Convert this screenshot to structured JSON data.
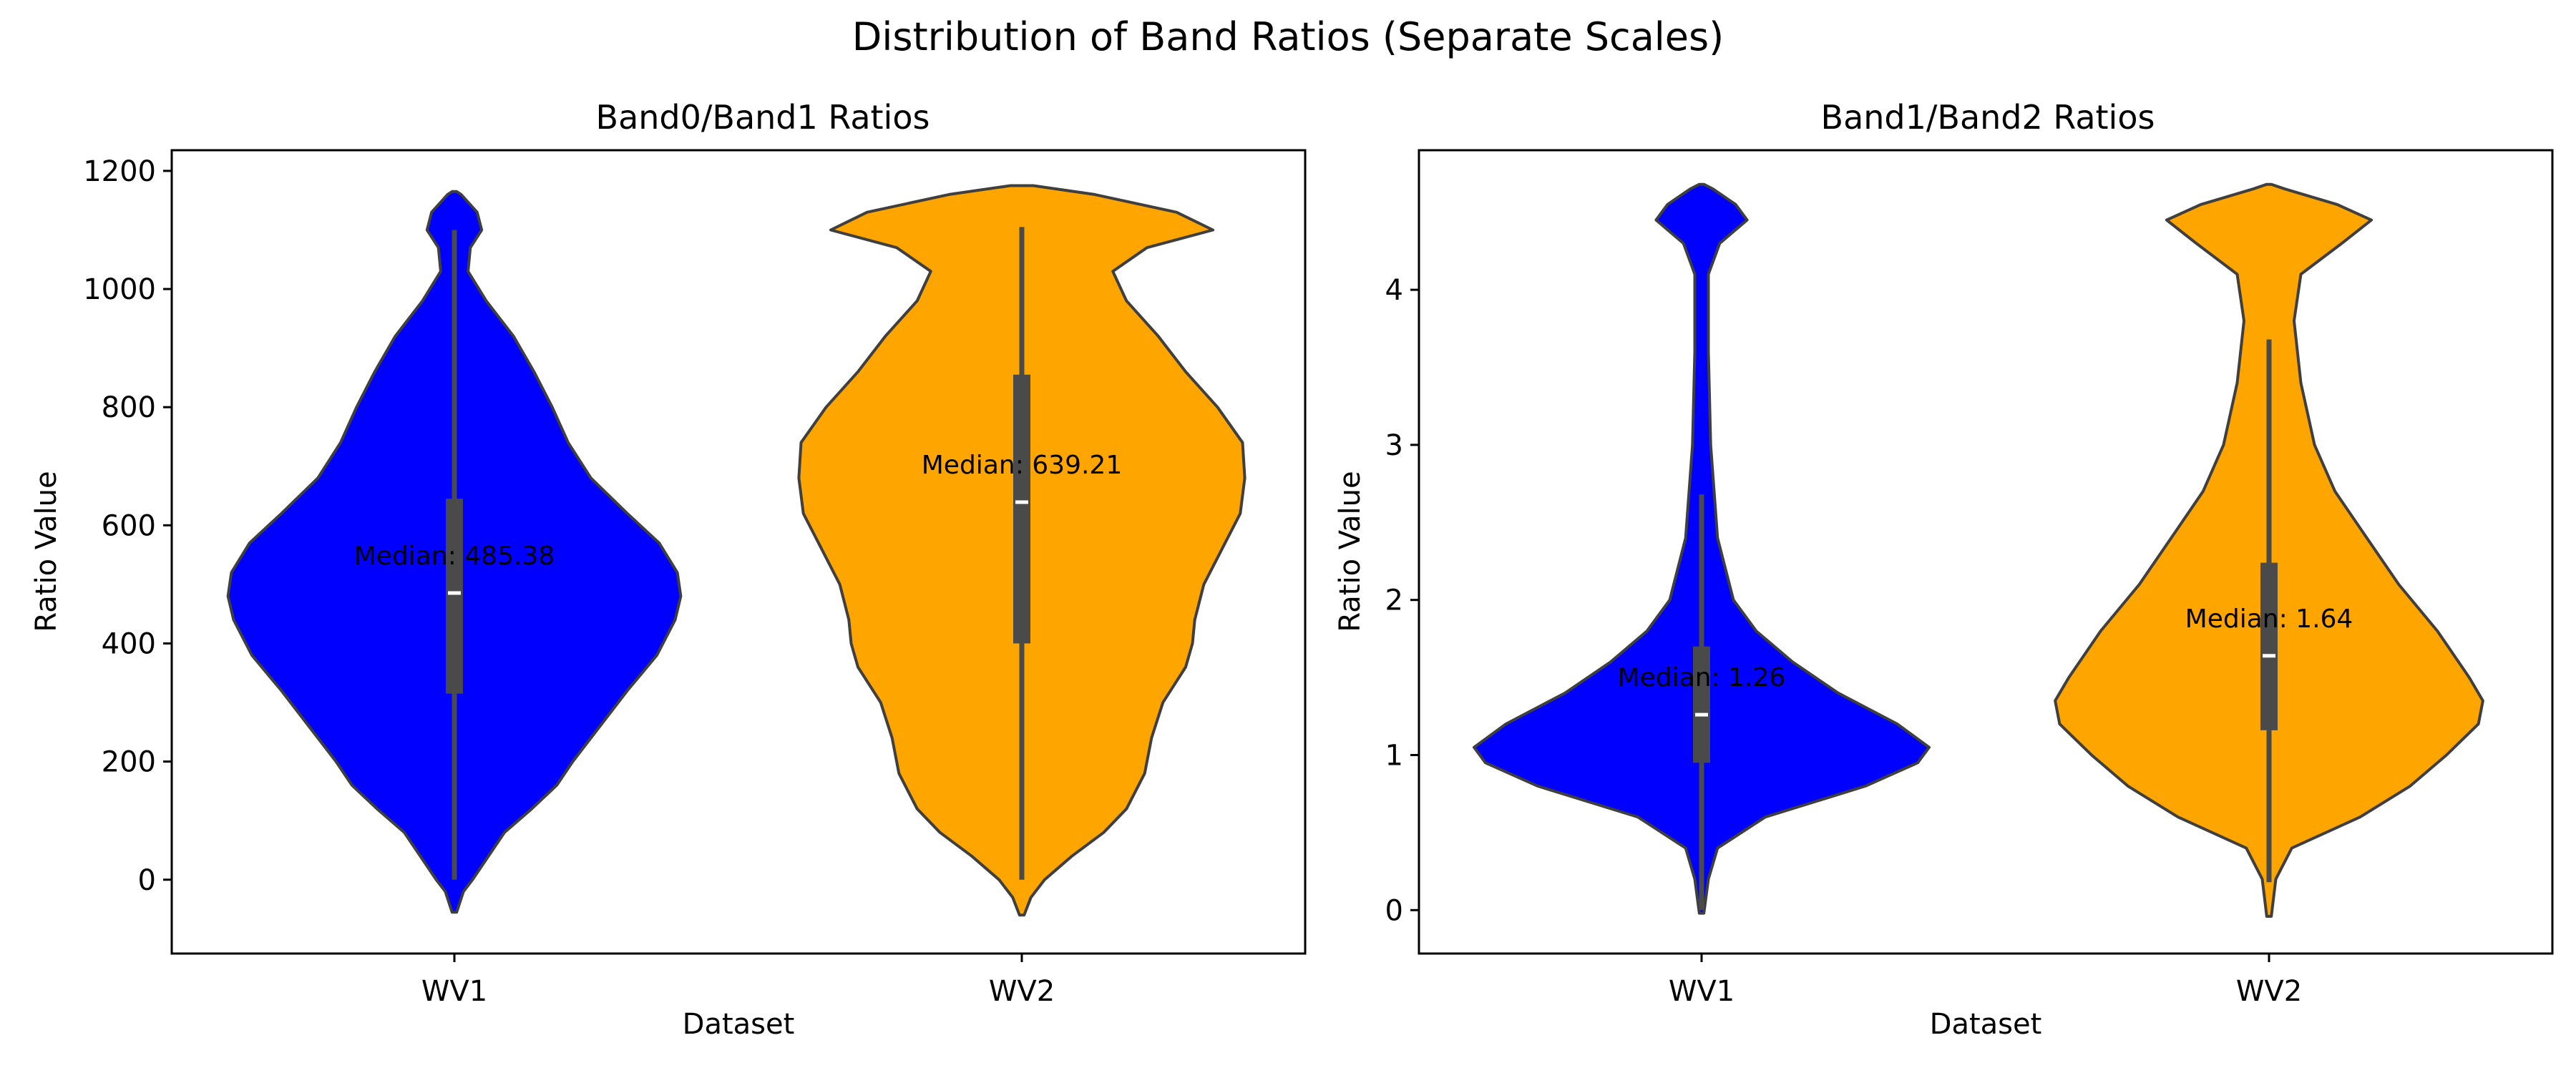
{
  "figure": {
    "title": "Distribution of Band Ratios (Separate Scales)"
  },
  "colors": {
    "WV1": "#0000ff",
    "WV2": "#ffa500",
    "outline": "#3f3f3f",
    "box": "#4a4a4a",
    "median": "#ffffff"
  },
  "chart_data": [
    {
      "type": "violin",
      "title": "Band0/Band1 Ratios",
      "xlabel": "Dataset",
      "ylabel": "Ratio Value",
      "categories": [
        "WV1",
        "WV2"
      ],
      "ylim": [
        -125,
        1235
      ],
      "yticks": [
        0,
        200,
        400,
        600,
        800,
        1000,
        1200
      ],
      "grid": false,
      "series": [
        {
          "name": "WV1",
          "min": 0,
          "q1": 315,
          "median": 485.38,
          "q3": 645,
          "max": 1100,
          "violin_range": [
            -55,
            1165
          ],
          "density": [
            [
              -55,
              0.01
            ],
            [
              -20,
              0.04
            ],
            [
              0,
              0.08
            ],
            [
              40,
              0.15
            ],
            [
              80,
              0.22
            ],
            [
              120,
              0.34
            ],
            [
              160,
              0.45
            ],
            [
              200,
              0.52
            ],
            [
              260,
              0.64
            ],
            [
              320,
              0.76
            ],
            [
              380,
              0.89
            ],
            [
              440,
              0.97
            ],
            [
              480,
              0.995
            ],
            [
              520,
              0.98
            ],
            [
              570,
              0.9
            ],
            [
              620,
              0.76
            ],
            [
              680,
              0.6
            ],
            [
              740,
              0.5
            ],
            [
              800,
              0.43
            ],
            [
              860,
              0.35
            ],
            [
              920,
              0.26
            ],
            [
              980,
              0.14
            ],
            [
              1030,
              0.06
            ],
            [
              1070,
              0.07
            ],
            [
              1100,
              0.12
            ],
            [
              1130,
              0.1
            ],
            [
              1160,
              0.03
            ],
            [
              1165,
              0.01
            ]
          ],
          "median_label": "Median: 485.38"
        },
        {
          "name": "WV2",
          "min": 0,
          "q1": 400,
          "median": 639.21,
          "q3": 855,
          "max": 1105,
          "violin_range": [
            -60,
            1175
          ],
          "density": [
            [
              -60,
              0.01
            ],
            [
              -30,
              0.04
            ],
            [
              0,
              0.1
            ],
            [
              40,
              0.22
            ],
            [
              80,
              0.36
            ],
            [
              120,
              0.46
            ],
            [
              180,
              0.54
            ],
            [
              240,
              0.57
            ],
            [
              300,
              0.62
            ],
            [
              360,
              0.72
            ],
            [
              400,
              0.75
            ],
            [
              440,
              0.76
            ],
            [
              500,
              0.8
            ],
            [
              560,
              0.88
            ],
            [
              620,
              0.96
            ],
            [
              680,
              0.98
            ],
            [
              740,
              0.97
            ],
            [
              800,
              0.86
            ],
            [
              860,
              0.72
            ],
            [
              920,
              0.6
            ],
            [
              980,
              0.46
            ],
            [
              1030,
              0.4
            ],
            [
              1070,
              0.55
            ],
            [
              1100,
              0.84
            ],
            [
              1130,
              0.68
            ],
            [
              1160,
              0.32
            ],
            [
              1175,
              0.05
            ]
          ],
          "median_label": "Median: 639.21"
        }
      ]
    },
    {
      "type": "violin",
      "title": "Band1/Band2 Ratios",
      "xlabel": "Dataset",
      "ylabel": "Ratio Value",
      "categories": [
        "WV1",
        "WV2"
      ],
      "ylim": [
        -0.28,
        4.9
      ],
      "yticks": [
        0,
        1,
        2,
        3,
        4
      ],
      "grid": false,
      "series": [
        {
          "name": "WV1",
          "min": 0.0,
          "q1": 0.95,
          "median": 1.26,
          "q3": 1.7,
          "max": 2.68,
          "violin_range": [
            -0.02,
            4.68
          ],
          "density": [
            [
              -0.02,
              0.01
            ],
            [
              0.2,
              0.03
            ],
            [
              0.4,
              0.07
            ],
            [
              0.6,
              0.28
            ],
            [
              0.8,
              0.72
            ],
            [
              0.95,
              0.95
            ],
            [
              1.05,
              1.0
            ],
            [
              1.2,
              0.86
            ],
            [
              1.4,
              0.6
            ],
            [
              1.6,
              0.4
            ],
            [
              1.8,
              0.24
            ],
            [
              2.0,
              0.14
            ],
            [
              2.4,
              0.07
            ],
            [
              3.0,
              0.04
            ],
            [
              3.6,
              0.03
            ],
            [
              4.1,
              0.03
            ],
            [
              4.3,
              0.08
            ],
            [
              4.45,
              0.2
            ],
            [
              4.55,
              0.15
            ],
            [
              4.65,
              0.05
            ],
            [
              4.68,
              0.01
            ]
          ],
          "median_label": "Median: 1.26"
        },
        {
          "name": "WV2",
          "min": 0.18,
          "q1": 1.16,
          "median": 1.64,
          "q3": 2.24,
          "max": 3.68,
          "violin_range": [
            -0.04,
            4.68
          ],
          "density": [
            [
              -0.04,
              0.01
            ],
            [
              0.2,
              0.03
            ],
            [
              0.4,
              0.1
            ],
            [
              0.6,
              0.4
            ],
            [
              0.8,
              0.62
            ],
            [
              1.0,
              0.78
            ],
            [
              1.2,
              0.92
            ],
            [
              1.35,
              0.94
            ],
            [
              1.5,
              0.88
            ],
            [
              1.8,
              0.74
            ],
            [
              2.1,
              0.57
            ],
            [
              2.4,
              0.43
            ],
            [
              2.7,
              0.29
            ],
            [
              3.0,
              0.2
            ],
            [
              3.4,
              0.14
            ],
            [
              3.8,
              0.11
            ],
            [
              4.1,
              0.14
            ],
            [
              4.3,
              0.32
            ],
            [
              4.45,
              0.45
            ],
            [
              4.55,
              0.3
            ],
            [
              4.65,
              0.07
            ],
            [
              4.68,
              0.01
            ]
          ],
          "median_label": "Median: 1.64"
        }
      ]
    }
  ]
}
